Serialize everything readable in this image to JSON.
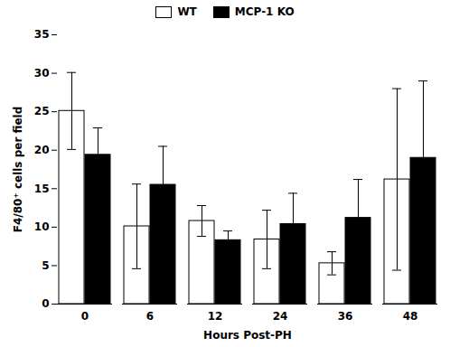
{
  "chart_data": {
    "type": "bar",
    "categories": [
      "0",
      "6",
      "12",
      "24",
      "36",
      "48"
    ],
    "series": [
      {
        "name": "WT",
        "color": "#ffffff",
        "values": [
          25.1,
          10.1,
          10.8,
          8.4,
          5.3,
          16.2
        ],
        "errors": [
          5.0,
          5.5,
          2.0,
          3.8,
          1.5,
          11.8
        ]
      },
      {
        "name": "MCP-1 KO",
        "color": "#000000",
        "values": [
          19.4,
          15.5,
          8.3,
          10.4,
          11.2,
          19.0
        ],
        "errors": [
          3.5,
          5.0,
          1.2,
          4.0,
          5.0,
          10.0
        ]
      }
    ],
    "xlabel": "Hours Post-PH",
    "ylabel": "F4/80⁺ cells per field",
    "ylim": [
      0,
      35
    ],
    "yticks": [
      0,
      5,
      10,
      15,
      20,
      25,
      30,
      35
    ],
    "legend": "upper center",
    "grid": false
  }
}
